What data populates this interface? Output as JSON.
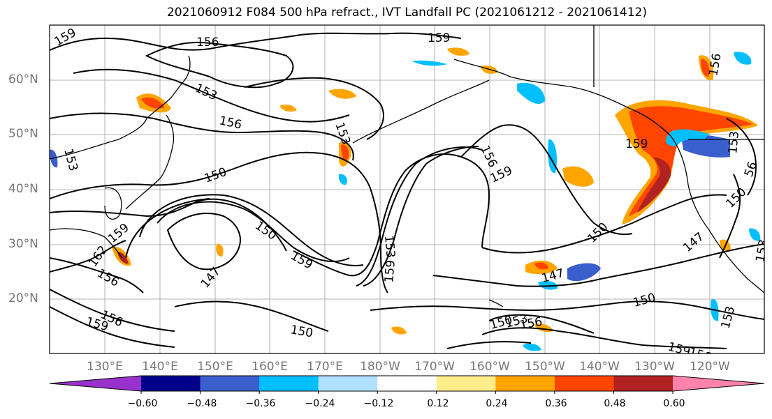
{
  "title": "2021060912 F084 500 hPa refract., IVT Landfall PC (2021061212 - 2021061412)",
  "map": {
    "lat_labels": [
      "60°N",
      "50°N",
      "40°N",
      "30°N",
      "20°N"
    ],
    "lon_labels": [
      "130°E",
      "140°E",
      "150°E",
      "160°E",
      "170°E",
      "180°W",
      "170°W",
      "160°W",
      "150°W",
      "140°W",
      "130°W",
      "120°W"
    ],
    "contour_labels": [
      "159",
      "156",
      "159",
      "156",
      "153",
      "156",
      "153",
      "150",
      "156",
      "159",
      "159",
      "153",
      "162",
      "156",
      "156",
      "159",
      "150",
      "147",
      "159",
      "153",
      "159",
      "150",
      "147",
      "150",
      "150",
      "153",
      "156",
      "159",
      "150",
      "147",
      "153",
      "150",
      "56",
      "159",
      "153",
      "156",
      "153"
    ],
    "contour_color": "#000000",
    "land_color": "#000000",
    "grid_color": "#9e9e9e"
  },
  "colorbar": {
    "colors": [
      "#9932cc",
      "#00008b",
      "#3a5fcd",
      "#00bfff",
      "#b0e2ff",
      "#ffffff",
      "#ffec8b",
      "#ffa500",
      "#ff4500",
      "#b22222",
      "#ff82ab"
    ],
    "tick_labels": [
      "−0.60",
      "−0.48",
      "−0.36",
      "−0.24",
      "−0.12",
      "0.12",
      "0.24",
      "0.36",
      "0.48",
      "0.60"
    ]
  }
}
